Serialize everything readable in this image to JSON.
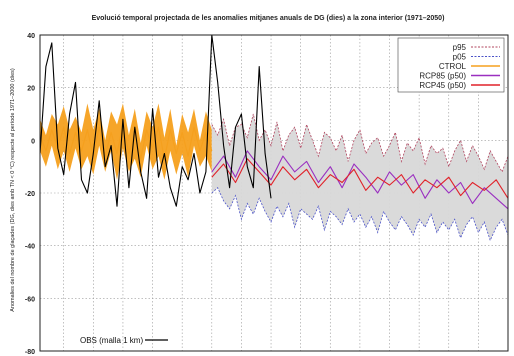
{
  "chart_data": {
    "type": "line",
    "title": "Evolució temporal projectada de les anomalies mitjanes anuals de DG (dies) a la zona interior (1971–2050)",
    "ylabel": "Anomalies del nombre de glaçades (DG, dies amb TN < 0 °C) respecte al període 1971–2000 (dies)",
    "xlabel": "",
    "ylim": [
      -80,
      40
    ],
    "yticks": [
      40,
      20,
      0,
      -20,
      -40,
      -60,
      -80
    ],
    "xlim": [
      1971,
      2050
    ],
    "grid": true,
    "legend_placement": "top-right",
    "legend": [
      "p95",
      "p05",
      "CTROL",
      "RCP85 (p50)",
      "RCP45 (p50)"
    ],
    "obs_label": "OBS (malla 1 km)",
    "colors": {
      "ctrol_band": "#f5a01e",
      "scenario_band": "#d8d8d8",
      "p95": "#b0445e",
      "p05": "#4a52c8",
      "ctrol": "#f5a01e",
      "rcp85": "#9a2fc0",
      "rcp45": "#e0222a",
      "obs": "#000000"
    },
    "ctrol_band": {
      "x": [
        1971,
        1972,
        1973,
        1974,
        1975,
        1976,
        1977,
        1978,
        1979,
        1980,
        1981,
        1982,
        1983,
        1984,
        1985,
        1986,
        1987,
        1988,
        1989,
        1990,
        1991,
        1992,
        1993,
        1994,
        1995,
        1996,
        1997,
        1998,
        1999,
        2000
      ],
      "upper": [
        8,
        2,
        10,
        6,
        13,
        4,
        9,
        3,
        14,
        4,
        12,
        0,
        11,
        6,
        14,
        2,
        12,
        -1,
        11,
        5,
        14,
        1,
        12,
        -2,
        10,
        3,
        12,
        0,
        11,
        4
      ],
      "lower": [
        -4,
        -10,
        -2,
        -11,
        -4,
        -12,
        -3,
        -11,
        -6,
        -13,
        -2,
        -12,
        -4,
        -15,
        -3,
        -12,
        -7,
        -14,
        -2,
        -11,
        -6,
        -15,
        -4,
        -13,
        -5,
        -14,
        -2,
        -10,
        -6,
        -12
      ]
    },
    "scenario_band": {
      "x": [
        2000,
        2001,
        2002,
        2003,
        2004,
        2005,
        2006,
        2007,
        2008,
        2009,
        2010,
        2011,
        2012,
        2013,
        2014,
        2015,
        2016,
        2017,
        2018,
        2019,
        2020,
        2021,
        2022,
        2023,
        2024,
        2025,
        2026,
        2027,
        2028,
        2029,
        2030,
        2031,
        2032,
        2033,
        2034,
        2035,
        2036,
        2037,
        2038,
        2039,
        2040,
        2041,
        2042,
        2043,
        2044,
        2045,
        2046,
        2047,
        2048,
        2049,
        2050
      ],
      "upper": [
        6,
        2,
        8,
        -2,
        5,
        6,
        1,
        10,
        0,
        4,
        -2,
        7,
        -4,
        2,
        5,
        -3,
        6,
        0,
        -6,
        3,
        1,
        -4,
        2,
        -8,
        0,
        4,
        -5,
        -1,
        1,
        -6,
        -2,
        3,
        -8,
        -1,
        -4,
        1,
        -9,
        -2,
        -5,
        -3,
        -10,
        -4,
        0,
        -8,
        -2,
        -6,
        -11,
        -4,
        -8,
        -12,
        -6
      ],
      "lower": [
        -20,
        -18,
        -23,
        -26,
        -21,
        -30,
        -24,
        -28,
        -22,
        -27,
        -31,
        -25,
        -29,
        -24,
        -33,
        -26,
        -28,
        -30,
        -25,
        -34,
        -27,
        -29,
        -32,
        -26,
        -31,
        -28,
        -33,
        -29,
        -35,
        -27,
        -31,
        -34,
        -29,
        -32,
        -36,
        -30,
        -33,
        -28,
        -35,
        -31,
        -34,
        -30,
        -37,
        -32,
        -29,
        -35,
        -31,
        -38,
        -33,
        -30,
        -36
      ]
    },
    "series": [
      {
        "name": "CTROL",
        "x": [
          1971,
          1972,
          1973,
          1974,
          1975,
          1976,
          1977,
          1978,
          1979,
          1980,
          1981,
          1982,
          1983,
          1984,
          1985,
          1986,
          1987,
          1988,
          1989,
          1990,
          1991,
          1992,
          1993,
          1994,
          1995,
          1996,
          1997,
          1998,
          1999,
          2000
        ],
        "values": [
          2,
          -4,
          4,
          -3,
          5,
          -5,
          3,
          -4,
          4,
          -6,
          5,
          -6,
          3,
          -5,
          6,
          -5,
          3,
          -7,
          4,
          -3,
          5,
          -7,
          4,
          -5,
          3,
          -6,
          5,
          -4,
          3,
          -4
        ]
      },
      {
        "name": "RCP85 (p50)",
        "x": [
          2000,
          2002,
          2004,
          2006,
          2008,
          2010,
          2012,
          2014,
          2016,
          2018,
          2020,
          2022,
          2024,
          2026,
          2028,
          2030,
          2032,
          2034,
          2036,
          2038,
          2040,
          2042,
          2044,
          2046,
          2048,
          2050
        ],
        "values": [
          -12,
          -6,
          -14,
          -4,
          -10,
          -15,
          -6,
          -12,
          -8,
          -16,
          -10,
          -18,
          -9,
          -14,
          -20,
          -12,
          -17,
          -13,
          -22,
          -15,
          -20,
          -16,
          -24,
          -18,
          -22,
          -26
        ]
      },
      {
        "name": "RCP45 (p50)",
        "x": [
          2000,
          2002,
          2004,
          2006,
          2008,
          2010,
          2012,
          2014,
          2016,
          2018,
          2020,
          2022,
          2024,
          2026,
          2028,
          2030,
          2032,
          2034,
          2036,
          2038,
          2040,
          2042,
          2044,
          2046,
          2048,
          2050
        ],
        "values": [
          -14,
          -9,
          -16,
          -7,
          -12,
          -17,
          -10,
          -15,
          -11,
          -18,
          -13,
          -16,
          -11,
          -19,
          -14,
          -17,
          -13,
          -20,
          -15,
          -18,
          -14,
          -21,
          -16,
          -19,
          -15,
          -22
        ]
      },
      {
        "name": "OBS (malla 1 km)",
        "x": [
          1971,
          1972,
          1973,
          1974,
          1975,
          1976,
          1977,
          1978,
          1979,
          1980,
          1981,
          1982,
          1983,
          1984,
          1985,
          1986,
          1987,
          1988,
          1989,
          1990,
          1991,
          1992,
          1993,
          1994,
          1995,
          1996,
          1997,
          1998,
          1999,
          2000,
          2001,
          2002,
          2003,
          2004,
          2005,
          2006,
          2007,
          2008,
          2009,
          2010
        ],
        "values": [
          -5,
          28,
          37,
          -3,
          -13,
          10,
          22,
          -15,
          -20,
          -5,
          15,
          -10,
          -2,
          -25,
          8,
          -18,
          5,
          -12,
          -22,
          12,
          -14,
          -5,
          -18,
          -25,
          -10,
          -15,
          -5,
          -20,
          -12,
          40,
          22,
          -2,
          -18,
          5,
          10,
          -10,
          -18,
          28,
          -5,
          -22
        ]
      }
    ]
  }
}
